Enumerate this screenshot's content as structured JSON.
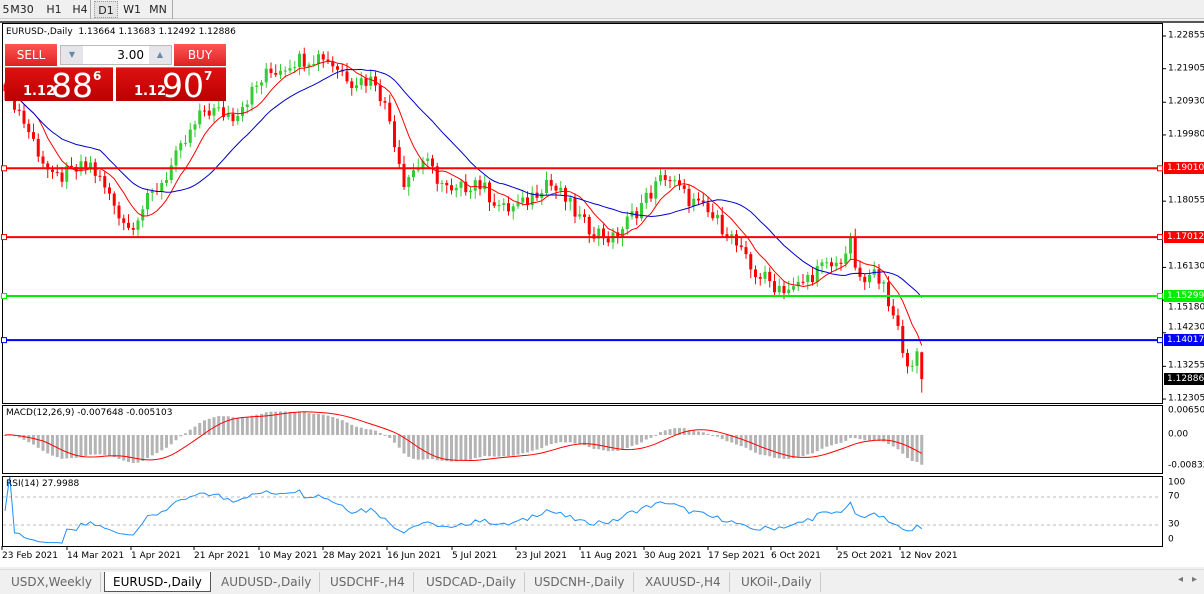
{
  "toolbar": {
    "timeframes": [
      "5",
      "M30",
      "H1",
      "H4",
      "D1",
      "W1",
      "MN"
    ],
    "active": "D1"
  },
  "chart": {
    "legend": "EURUSD-,Daily  1.13664 1.13683 1.12492 1.12886",
    "trade_panel": {
      "sell_label": "SELL",
      "buy_label": "BUY",
      "lot": "3.00",
      "bid_prefix": "1.12",
      "bid_big": "88",
      "bid_sup": "6",
      "ask_prefix": "1.12",
      "ask_big": "90",
      "ask_sup": "7",
      "down_icon": "triangle-down",
      "up_icon": "triangle-up"
    },
    "price_axis": [
      "1.22855",
      "1.21905",
      "1.20930",
      "1.19980",
      "1.18055",
      "1.16130",
      "1.15180",
      "1.14230",
      "1.13255",
      "1.12305"
    ],
    "levels": [
      {
        "price": "1.19010",
        "color": "#ff0000"
      },
      {
        "price": "1.17012",
        "color": "#ff0000"
      },
      {
        "price": "1.15299",
        "color": "#00ee00"
      },
      {
        "price": "1.14017",
        "color": "#0000ff"
      }
    ],
    "current_price": "1.12886",
    "colors": {
      "bull": "#33cc33",
      "bear": "#ff0000",
      "ma_fast": "#ff0000",
      "ma_slow": "#0000cc",
      "macd_hist": "#b4b4b4",
      "macd_signal": "#ff0000",
      "rsi": "#1e90ff"
    },
    "macd": {
      "legend": "MACD(12,26,9) -0.007648 -0.005103",
      "axis": [
        "0.00650",
        "0.00",
        "-0.00832"
      ]
    },
    "rsi": {
      "legend": "RSI(14) 27.9988",
      "axis": [
        "100",
        "70",
        "30",
        "0"
      ]
    },
    "dates": [
      "23 Feb 2021",
      "14 Mar 2021",
      "1 Apr 2021",
      "21 Apr 2021",
      "10 May 2021",
      "28 May 2021",
      "16 Jun 2021",
      "5 Jul 2021",
      "23 Jul 2021",
      "11 Aug 2021",
      "30 Aug 2021",
      "17 Sep 2021",
      "6 Oct 2021",
      "25 Oct 2021",
      "12 Nov 2021"
    ]
  },
  "chart_data": {
    "type": "candlestick",
    "symbol": "EURUSD-",
    "timeframe": "Daily",
    "last_bar": {
      "date": "2021-11-19",
      "open": 1.13664,
      "high": 1.13683,
      "low": 1.12492,
      "close": 1.12886
    },
    "ylim": [
      1.12305,
      1.22855
    ],
    "close_keypoints": [
      [
        "2021-02-23",
        1.215
      ],
      [
        "2021-03-09",
        1.1867
      ],
      [
        "2021-03-19",
        1.1911
      ],
      [
        "2021-03-31",
        1.1728
      ],
      [
        "2021-04-12",
        1.1882
      ],
      [
        "2021-04-22",
        1.2071
      ],
      [
        "2021-04-30",
        1.2056
      ],
      [
        "2021-05-11",
        1.2172
      ],
      [
        "2021-05-19",
        1.2216
      ],
      [
        "2021-05-27",
        1.223
      ],
      [
        "2021-06-04",
        1.2158
      ],
      [
        "2021-06-11",
        1.2158
      ],
      [
        "2021-06-16",
        1.2041
      ],
      [
        "2021-06-21",
        1.1867
      ],
      [
        "2021-06-25",
        1.1925
      ],
      [
        "2021-07-05",
        1.1823
      ],
      [
        "2021-07-12",
        1.1867
      ],
      [
        "2021-07-20",
        1.178
      ],
      [
        "2021-07-26",
        1.1794
      ],
      [
        "2021-08-02",
        1.1867
      ],
      [
        "2021-08-06",
        1.1809
      ],
      [
        "2021-08-12",
        1.1736
      ],
      [
        "2021-08-20",
        1.1693
      ],
      [
        "2021-08-27",
        1.178
      ],
      [
        "2021-09-06",
        1.1882
      ],
      [
        "2021-09-10",
        1.1823
      ],
      [
        "2021-09-16",
        1.178
      ],
      [
        "2021-09-23",
        1.1722
      ],
      [
        "2021-09-30",
        1.1606
      ],
      [
        "2021-10-07",
        1.1562
      ],
      [
        "2021-10-13",
        1.1547
      ],
      [
        "2021-10-20",
        1.1606
      ],
      [
        "2021-10-26",
        1.162
      ],
      [
        "2021-10-29",
        1.1678
      ],
      [
        "2021-11-02",
        1.1562
      ],
      [
        "2021-11-05",
        1.1591
      ],
      [
        "2021-11-09",
        1.1591
      ],
      [
        "2021-11-10",
        1.148
      ],
      [
        "2021-11-12",
        1.1445
      ],
      [
        "2021-11-16",
        1.132
      ],
      [
        "2021-11-18",
        1.1366
      ],
      [
        "2021-11-19",
        1.12886
      ]
    ]
  },
  "tabs": [
    "USDX,Weekly",
    "EURUSD-,Daily",
    "AUDUSD-,Daily",
    "USDCHF-,H4",
    "USDCAD-,Daily",
    "USDCNH-,Daily",
    "XAUUSD-,H4",
    "UKOil-,Daily"
  ],
  "active_tab": "EURUSD-,Daily"
}
